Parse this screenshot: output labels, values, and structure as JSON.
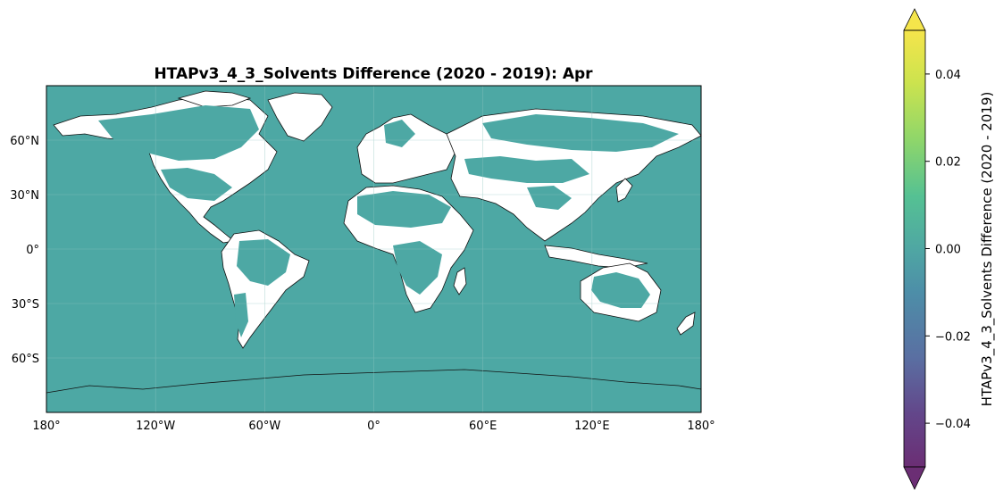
{
  "map": {
    "title": "HTAPv3_4_3_Solvents Difference (2020 - 2019): Apr",
    "ocean_color": "#4da8a4",
    "land_nodata_color": "#ffffff",
    "coast_color": "#111111",
    "grid_color": "#8fc6c0",
    "projection": "PlateCarree",
    "lon_range": [
      -180,
      180
    ],
    "lat_range": [
      -90,
      90
    ],
    "lon_ticks": [
      {
        "value": -180,
        "label": "180°"
      },
      {
        "value": -120,
        "label": "120°W"
      },
      {
        "value": -60,
        "label": "60°W"
      },
      {
        "value": 0,
        "label": "0°"
      },
      {
        "value": 60,
        "label": "60°E"
      },
      {
        "value": 120,
        "label": "120°E"
      },
      {
        "value": 180,
        "label": "180°"
      }
    ],
    "lat_ticks": [
      {
        "value": 60,
        "label": "60°N"
      },
      {
        "value": 30,
        "label": "30°N"
      },
      {
        "value": 0,
        "label": "0°"
      },
      {
        "value": -30,
        "label": "30°S"
      },
      {
        "value": -60,
        "label": "60°S"
      }
    ]
  },
  "colorbar": {
    "label": "HTAPv3_4_3_Solvents Difference (2020 - 2019)",
    "range": [
      -0.05,
      0.05
    ],
    "extend": "both",
    "colormap": "viridis",
    "colors": [
      "#6b2e74",
      "#63468a",
      "#5a6fa2",
      "#4d8ea8",
      "#4fa7a3",
      "#55c193",
      "#8fd66a",
      "#cce34e",
      "#f5e54b"
    ],
    "ticks": [
      {
        "value": 0.04,
        "label": "0.04"
      },
      {
        "value": 0.02,
        "label": "0.02"
      },
      {
        "value": 0.0,
        "label": "0.00"
      },
      {
        "value": -0.02,
        "label": "−0.02"
      },
      {
        "value": -0.04,
        "label": "−0.04"
      }
    ]
  }
}
